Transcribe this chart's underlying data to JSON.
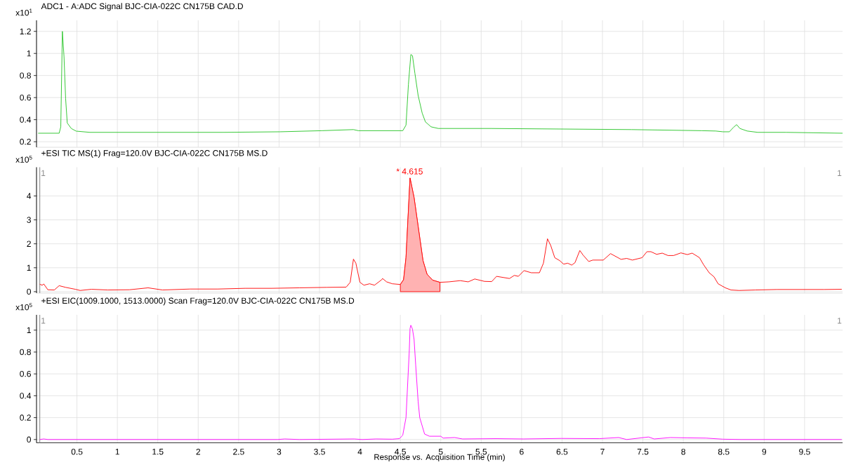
{
  "chart_data": [
    {
      "type": "line",
      "title": "ADC1 - A:ADC Signal BJC-CIA-022C CN175B CAD.D",
      "ylabel": "x10$^{1}$",
      "xlim": [
        0,
        9.97
      ],
      "ylim": [
        0.15,
        1.3
      ],
      "xticks": [
        0.5,
        1,
        1.5,
        2,
        2.5,
        3,
        3.5,
        4,
        4.5,
        5,
        5.5,
        6,
        6.5,
        7,
        7.5,
        8,
        8.5,
        9,
        9.5
      ],
      "yticks": [
        0.2,
        0.4,
        0.6,
        0.8,
        1,
        1.2
      ],
      "grid": true,
      "tick_labels": "y",
      "series": [
        {
          "color": "#22c322",
          "x": [
            0.02,
            0.28,
            0.3,
            0.32,
            0.34,
            0.36,
            0.38,
            0.43,
            0.49,
            0.66,
            2.31,
            3.01,
            3.53,
            3.92,
            3.98,
            4.53,
            4.57,
            4.6,
            4.63,
            4.65,
            4.68,
            4.72,
            4.77,
            4.81,
            4.88,
            4.97,
            5.62,
            6.49,
            7.36,
            8.23,
            8.4,
            8.49,
            8.57,
            8.62,
            8.66,
            8.7,
            8.79,
            8.92,
            9.27,
            9.97
          ],
          "values": [
            0.277,
            0.277,
            0.335,
            1.2,
            0.97,
            0.59,
            0.37,
            0.32,
            0.296,
            0.285,
            0.285,
            0.29,
            0.3,
            0.31,
            0.3,
            0.3,
            0.35,
            0.72,
            0.99,
            0.98,
            0.82,
            0.62,
            0.46,
            0.38,
            0.335,
            0.32,
            0.32,
            0.315,
            0.31,
            0.3,
            0.297,
            0.29,
            0.29,
            0.33,
            0.355,
            0.32,
            0.297,
            0.285,
            0.285,
            0.277
          ]
        }
      ]
    },
    {
      "type": "line",
      "title": "+ESI TIC MS(1) Frag=120.0V BJC-CIA-022C CN175B MS.D",
      "ylabel": "x10$^{5}$",
      "xlim": [
        0,
        9.97
      ],
      "ylim": [
        -0.06,
        5.2
      ],
      "xticks": [
        0.5,
        1,
        1.5,
        2,
        2.5,
        3,
        3.5,
        4,
        4.5,
        5,
        5.5,
        6,
        6.5,
        7,
        7.5,
        8,
        8.5,
        9,
        9.5
      ],
      "yticks": [
        0,
        1,
        2,
        3,
        4
      ],
      "grid": true,
      "tick_labels": "y",
      "series": [
        {
          "color": "#ff0000",
          "x": [
            0.04,
            0.07,
            0.09,
            0.14,
            0.22,
            0.28,
            0.36,
            0.48,
            0.54,
            0.68,
            0.88,
            1.15,
            1.38,
            1.56,
            1.9,
            2.24,
            2.58,
            2.91,
            3.25,
            3.59,
            3.83,
            3.88,
            3.92,
            3.95,
            4.0,
            4.05,
            4.12,
            4.18,
            4.27,
            4.28,
            4.33,
            4.4,
            4.5,
            4.54,
            4.57,
            4.62,
            4.67,
            4.78,
            4.83,
            4.9,
            4.99,
            5.1,
            5.24,
            5.34,
            5.42,
            5.54,
            5.63,
            5.69,
            5.85,
            5.91,
            5.96,
            6.03,
            6.12,
            6.22,
            6.27,
            6.32,
            6.36,
            6.41,
            6.47,
            6.52,
            6.57,
            6.62,
            6.66,
            6.72,
            6.76,
            6.83,
            6.88,
            7.01,
            7.1,
            7.23,
            7.3,
            7.37,
            7.49,
            7.55,
            7.6,
            7.67,
            7.74,
            7.81,
            7.88,
            7.97,
            8.05,
            8.11,
            8.2,
            8.25,
            8.32,
            8.38,
            8.43,
            8.52,
            8.59,
            8.69,
            8.89,
            9.16,
            9.5,
            9.74,
            9.96
          ],
          "values": [
            0.31,
            0.27,
            0.32,
            0.08,
            0.07,
            0.25,
            0.18,
            0.1,
            0.05,
            0.1,
            0.07,
            0.08,
            0.16,
            0.07,
            0.11,
            0.11,
            0.14,
            0.14,
            0.16,
            0.18,
            0.19,
            0.39,
            1.36,
            1.19,
            0.39,
            0.27,
            0.33,
            0.27,
            0.5,
            0.55,
            0.41,
            0.33,
            0.3,
            0.5,
            1.42,
            4.75,
            3.93,
            1.3,
            0.73,
            0.48,
            0.39,
            0.41,
            0.46,
            0.41,
            0.53,
            0.43,
            0.42,
            0.64,
            0.55,
            0.68,
            0.64,
            0.88,
            0.79,
            0.79,
            1.19,
            2.21,
            1.93,
            1.42,
            1.3,
            1.15,
            1.19,
            1.11,
            1.21,
            1.72,
            1.53,
            1.26,
            1.32,
            1.32,
            1.59,
            1.35,
            1.39,
            1.32,
            1.42,
            1.67,
            1.67,
            1.56,
            1.61,
            1.51,
            1.51,
            1.62,
            1.55,
            1.61,
            1.42,
            1.13,
            0.79,
            0.62,
            0.33,
            0.16,
            0.07,
            0.05,
            0.07,
            0.09,
            0.09,
            0.09,
            0.1
          ]
        },
        {
          "type": "area",
          "color": "#ff0000",
          "x": [
            4.5,
            4.54,
            4.57,
            4.62,
            4.67,
            4.78,
            4.83,
            4.9,
            4.99
          ],
          "values": [
            0.3,
            0.5,
            1.42,
            4.75,
            3.93,
            1.3,
            0.73,
            0.48,
            0.39
          ]
        }
      ],
      "ref_lines": [
        {
          "axis": "x",
          "value": 0.04,
          "color": "#999999"
        }
      ],
      "annotations": [
        {
          "text": "* 4.615",
          "x": 4.615,
          "y": 4.75
        },
        "1",
        "1"
      ]
    },
    {
      "type": "line",
      "title": "+ESI EIC(1009.1000, 1513.0000) Scan Frag=120.0V BJC-CIA-022C CN175B MS.D",
      "ylabel": "x10$^{5}$",
      "xlabel": "Response vs. Acquisition Time (min)",
      "xlim": [
        0,
        9.97
      ],
      "ylim": [
        -0.03,
        1.14
      ],
      "xticks": [
        0.5,
        1,
        1.5,
        2,
        2.5,
        3,
        3.5,
        4,
        4.5,
        5,
        5.5,
        6,
        6.5,
        7,
        7.5,
        8,
        8.5,
        9,
        9.5
      ],
      "yticks": [
        0,
        0.2,
        0.4,
        0.6,
        0.8,
        1
      ],
      "grid": true,
      "series": [
        {
          "color": "#ff00ff",
          "x": [
            0.04,
            0.09,
            0.14,
            2.98,
            3.07,
            3.25,
            3.93,
            4.03,
            4.2,
            4.4,
            4.49,
            4.53,
            4.57,
            4.61,
            4.62,
            4.63,
            4.65,
            4.67,
            4.69,
            4.72,
            4.74,
            4.8,
            4.86,
            5.0,
            5.03,
            5.17,
            5.27,
            5.68,
            6.02,
            6.49,
            6.96,
            7.2,
            7.3,
            7.57,
            7.64,
            7.84,
            8.05,
            8.28,
            8.49,
            8.72,
            9.96
          ],
          "values": [
            0,
            0.005,
            0,
            0,
            0.005,
            0,
            0.005,
            0,
            0.005,
            0.003,
            0.008,
            0.04,
            0.2,
            0.8,
            1.015,
            1.045,
            1.01,
            0.915,
            0.68,
            0.35,
            0.2,
            0.05,
            0.03,
            0.03,
            0.013,
            0.018,
            0.005,
            0.008,
            0.005,
            0.01,
            0.008,
            0.018,
            0,
            0.023,
            0.005,
            0.018,
            0.015,
            0.013,
            0.003,
            0,
            0
          ]
        }
      ],
      "ref_lines": [
        {
          "axis": "x",
          "value": 0.04,
          "color": "#999999"
        }
      ],
      "annotations": [
        "1",
        "1"
      ]
    }
  ]
}
